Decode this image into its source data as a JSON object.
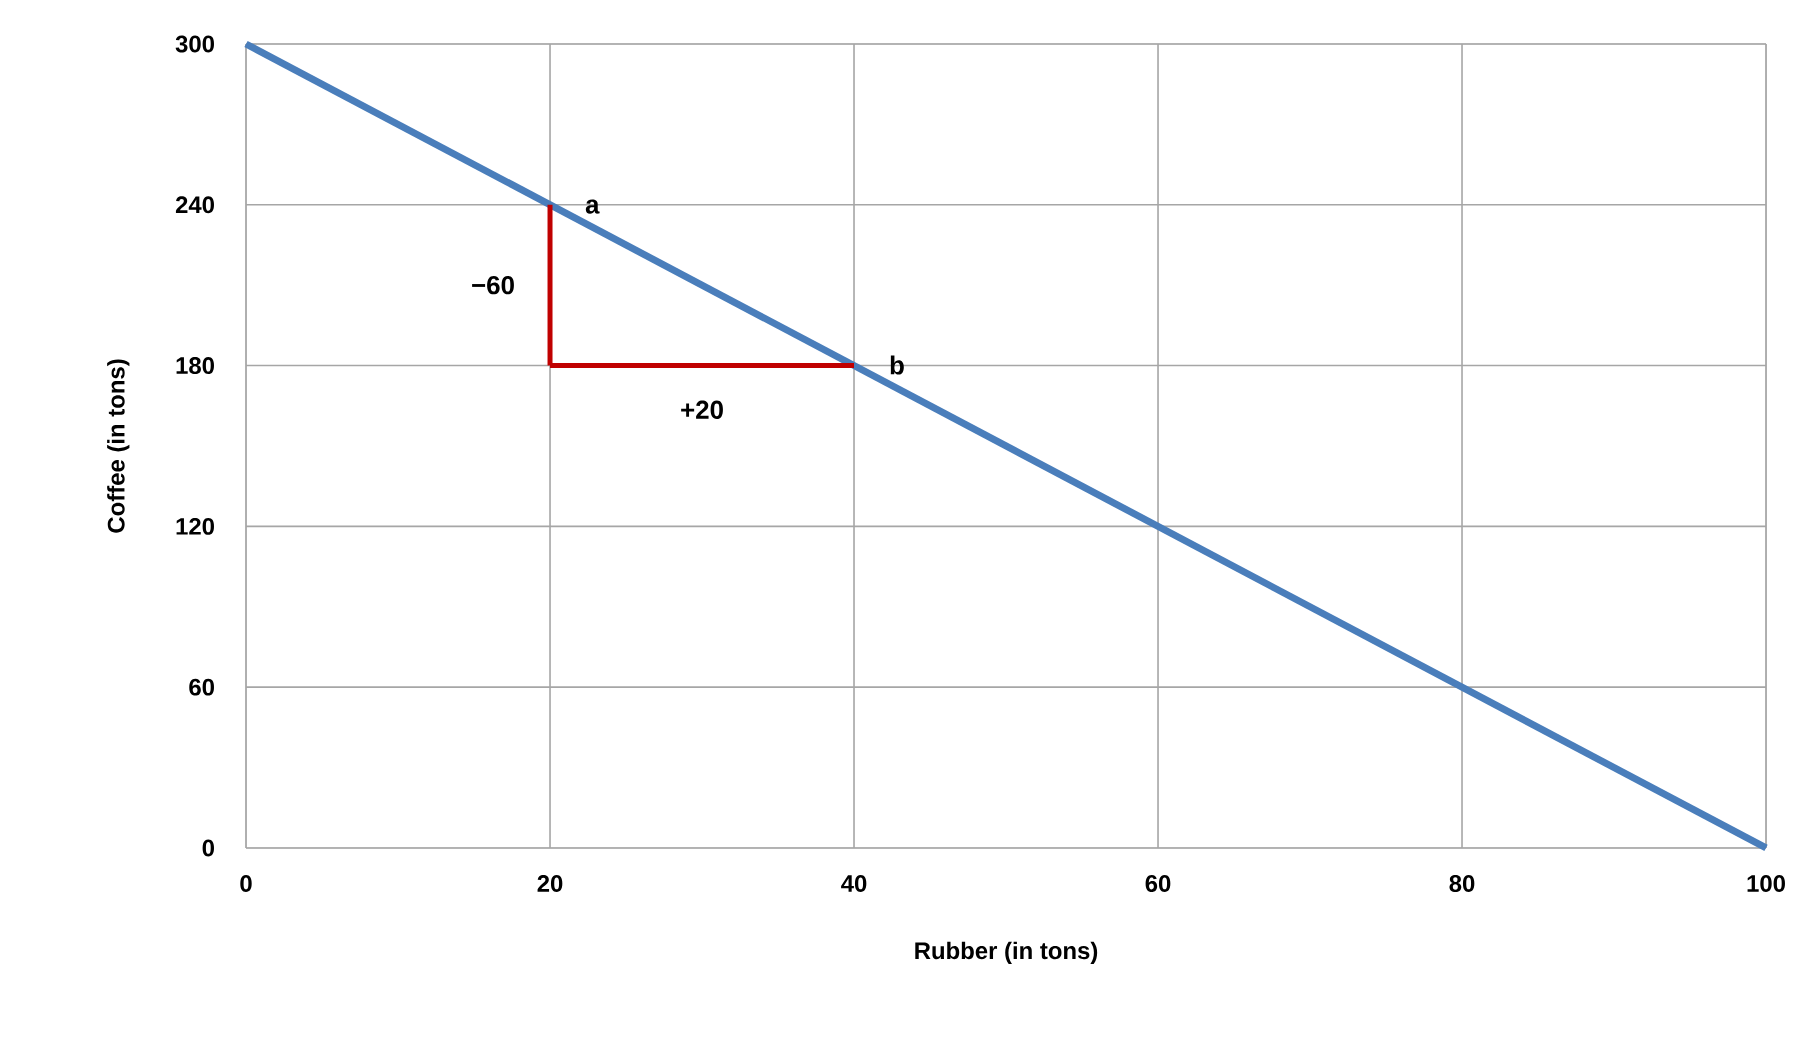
{
  "chart_data": {
    "type": "line",
    "xlabel": "Rubber (in tons)",
    "ylabel": "Coffee (in tons)",
    "xlim": [
      0,
      100
    ],
    "ylim": [
      0,
      300
    ],
    "xticks": [
      0,
      20,
      40,
      60,
      80,
      100
    ],
    "yticks": [
      0,
      60,
      120,
      180,
      240,
      300
    ],
    "grid": true,
    "marker": "none",
    "line_style": "solid",
    "series": [
      {
        "color": "#4a7ebb",
        "x": [
          0,
          100
        ],
        "values": [
          300,
          0
        ]
      },
      {
        "color": "#c00000",
        "x": [
          20,
          20
        ],
        "values": [
          240,
          180
        ]
      },
      {
        "color": "#c00000",
        "x": [
          20,
          40
        ],
        "values": [
          180,
          180
        ]
      }
    ],
    "annotations": [
      {
        "text": "a",
        "x": 20,
        "y": 240
      },
      {
        "text": "b",
        "x": 40,
        "y": 180
      },
      {
        "text": "−60",
        "x": 20,
        "y": 210
      },
      {
        "text": "+20",
        "x": 30,
        "y": 180
      }
    ]
  }
}
